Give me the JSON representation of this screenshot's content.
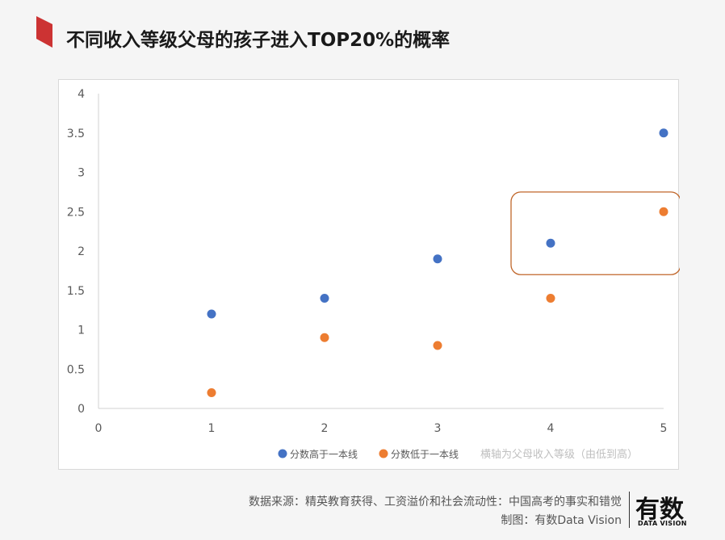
{
  "title": "不同收入等级父母的孩子进入TOP20%的概率",
  "colors": {
    "accent": "#cc3333",
    "series_high": "#4472c4",
    "series_low": "#ed7d31",
    "highlight_box": "#c0662a"
  },
  "chart_data": {
    "type": "scatter",
    "title": "",
    "xlabel": "",
    "ylabel": "",
    "xlim": [
      0,
      5
    ],
    "ylim": [
      0,
      4
    ],
    "x_ticks": [
      "0",
      "1",
      "2",
      "3",
      "4",
      "5"
    ],
    "y_ticks": [
      "0",
      "0.5",
      "1",
      "1.5",
      "2",
      "2.5",
      "3",
      "3.5",
      "4"
    ],
    "grid": false,
    "legend_placement": "bottom",
    "series": [
      {
        "name": "分数高于一本线",
        "color": "#4472c4",
        "x": [
          1,
          2,
          3,
          4,
          5
        ],
        "y": [
          1.2,
          1.4,
          1.9,
          2.1,
          3.5
        ]
      },
      {
        "name": "分数低于一本线",
        "color": "#ed7d31",
        "x": [
          1,
          2,
          3,
          4,
          5
        ],
        "y": [
          0.2,
          0.9,
          0.8,
          1.4,
          2.5
        ]
      }
    ],
    "legend_note": "横轴为父母收入等级（由低到高）",
    "highlight": {
      "x_range": [
        3.65,
        5.15
      ],
      "y_range": [
        1.7,
        2.75
      ]
    }
  },
  "footer": {
    "source": "数据来源：精英教育获得、工资溢价和社会流动性：中国高考的事实和错觉",
    "credit": "制图：有数Data Vision"
  },
  "logo": {
    "main": "有数",
    "sub": "DATA VISION"
  }
}
